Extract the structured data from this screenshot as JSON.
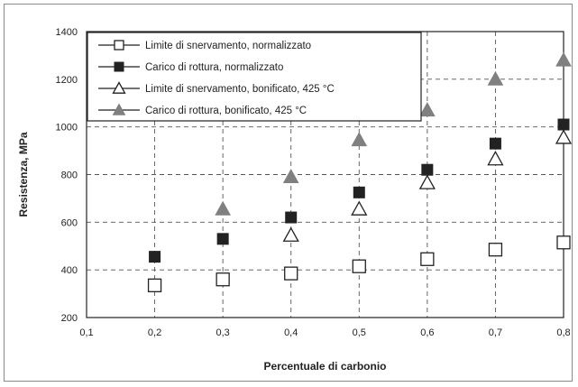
{
  "chart_data": {
    "type": "scatter",
    "xlabel": "Percentuale di carbonio",
    "ylabel": "Resistenza, MPa",
    "xlim": [
      0.1,
      0.8
    ],
    "ylim": [
      200,
      1400
    ],
    "x_ticks": [
      0.1,
      0.2,
      0.3,
      0.4,
      0.5,
      0.6,
      0.7,
      0.8
    ],
    "x_tick_labels": [
      "0,1",
      "0,2",
      "0,3",
      "0,4",
      "0,5",
      "0,6",
      "0,7",
      "0,8"
    ],
    "y_ticks": [
      200,
      400,
      600,
      800,
      1000,
      1200,
      1400
    ],
    "y_tick_labels": [
      "200",
      "400",
      "600",
      "800",
      "1000",
      "1200",
      "1400"
    ],
    "grid": true,
    "legend_position": "top-left",
    "series": [
      {
        "name": "Limite di snervamento,  normalizzato",
        "marker": "square-open",
        "color": "#222222",
        "x": [
          0.2,
          0.3,
          0.4,
          0.5,
          0.6,
          0.7,
          0.8
        ],
        "y": [
          335,
          360,
          385,
          415,
          445,
          485,
          515
        ]
      },
      {
        "name": "Carico di rottura, normalizzato",
        "marker": "square-filled",
        "color": "#222222",
        "x": [
          0.2,
          0.3,
          0.4,
          0.5,
          0.6,
          0.7,
          0.8
        ],
        "y": [
          455,
          530,
          620,
          725,
          820,
          930,
          1010
        ]
      },
      {
        "name": "Limite di snervamento, bonificato, 425 °C",
        "marker": "triangle-open",
        "color": "#222222",
        "x": [
          0.4,
          0.5,
          0.6,
          0.7,
          0.8
        ],
        "y": [
          545,
          655,
          765,
          865,
          955
        ]
      },
      {
        "name": "Carico di rottura,  bonificato, 425 °C",
        "marker": "triangle-filled",
        "color": "#808080",
        "x": [
          0.3,
          0.4,
          0.5,
          0.6,
          0.7,
          0.8
        ],
        "y": [
          655,
          790,
          945,
          1070,
          1200,
          1280
        ]
      }
    ]
  }
}
